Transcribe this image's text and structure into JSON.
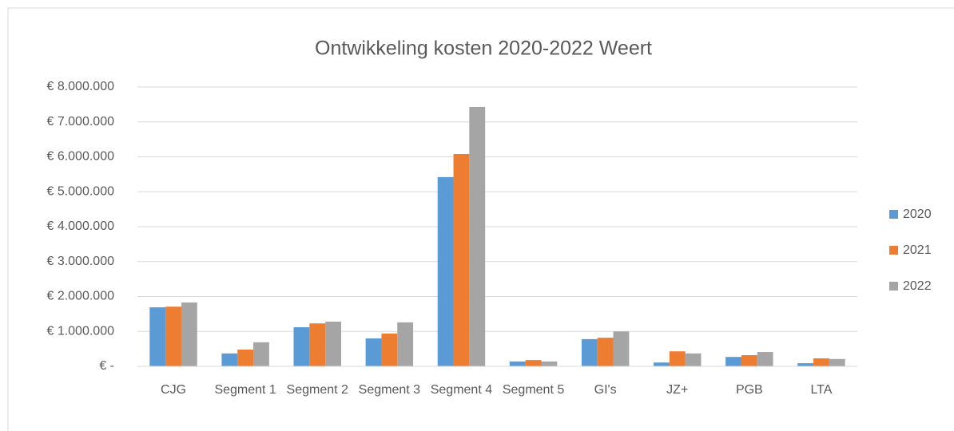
{
  "chart_data": {
    "type": "bar",
    "title": "Ontwikkeling kosten 2020-2022 Weert",
    "categories": [
      "CJG",
      "Segment 1",
      "Segment 2",
      "Segment 3",
      "Segment 4",
      "Segment 5",
      "GI's",
      "JZ+",
      "PGB",
      "LTA"
    ],
    "series": [
      {
        "name": "2020",
        "color": "#5b9bd5",
        "values": [
          1690000,
          370000,
          1120000,
          800000,
          5420000,
          140000,
          780000,
          110000,
          270000,
          90000
        ]
      },
      {
        "name": "2021",
        "color": "#ed7d31",
        "values": [
          1710000,
          480000,
          1230000,
          940000,
          6080000,
          180000,
          820000,
          430000,
          320000,
          230000
        ]
      },
      {
        "name": "2022",
        "color": "#a5a5a5",
        "values": [
          1830000,
          690000,
          1280000,
          1260000,
          7430000,
          140000,
          1000000,
          370000,
          410000,
          210000
        ]
      }
    ],
    "ylim": [
      0,
      8000000
    ],
    "yticks": [
      {
        "value": 0,
        "label": "€ -"
      },
      {
        "value": 1000000,
        "label": "€ 1.000.000"
      },
      {
        "value": 2000000,
        "label": "€ 2.000.000"
      },
      {
        "value": 3000000,
        "label": "€ 3.000.000"
      },
      {
        "value": 4000000,
        "label": "€ 4.000.000"
      },
      {
        "value": 5000000,
        "label": "€ 5.000.000"
      },
      {
        "value": 6000000,
        "label": "€ 6.000.000"
      },
      {
        "value": 7000000,
        "label": "€ 7.000.000"
      },
      {
        "value": 8000000,
        "label": "€ 8.000.000"
      }
    ],
    "grid": true,
    "legend": "right"
  }
}
